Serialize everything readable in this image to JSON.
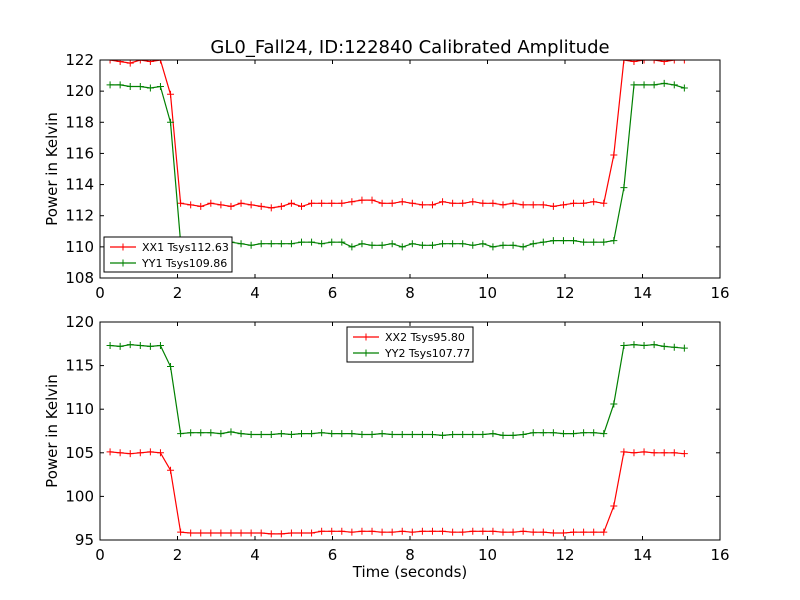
{
  "title": "GL0_Fall24, ID:122840 Calibrated Amplitude",
  "colors": {
    "series_red": "#ff0000",
    "series_green": "#008000",
    "frame": "#000000",
    "background": "#ffffff"
  },
  "chart_data": [
    {
      "type": "line",
      "ylabel": "Power in Kelvin",
      "xlabel": "",
      "xlim": [
        0,
        16
      ],
      "ylim": [
        108,
        122
      ],
      "xticks": [
        0,
        2,
        4,
        6,
        8,
        10,
        12,
        14,
        16
      ],
      "yticks": [
        108,
        110,
        112,
        114,
        116,
        118,
        120,
        122
      ],
      "legend_position": "lower-left",
      "grid": false,
      "series": [
        {
          "name": "XX1 Tsys112.63",
          "color": "#ff0000",
          "x": [
            0.26,
            0.52,
            0.78,
            1.04,
            1.3,
            1.56,
            1.82,
            2.08,
            2.34,
            2.6,
            2.86,
            3.12,
            3.38,
            3.64,
            3.9,
            4.16,
            4.42,
            4.68,
            4.94,
            5.2,
            5.46,
            5.72,
            5.98,
            6.24,
            6.5,
            6.76,
            7.02,
            7.28,
            7.54,
            7.8,
            8.06,
            8.32,
            8.58,
            8.84,
            9.1,
            9.36,
            9.62,
            9.88,
            10.14,
            10.4,
            10.66,
            10.92,
            11.18,
            11.44,
            11.7,
            11.96,
            12.22,
            12.48,
            12.74,
            13.0,
            13.26,
            13.52,
            13.78,
            14.04,
            14.3,
            14.56,
            14.82,
            15.08
          ],
          "y": [
            122.0,
            121.9,
            121.8,
            122.0,
            121.9,
            122.0,
            119.8,
            112.8,
            112.7,
            112.6,
            112.8,
            112.7,
            112.6,
            112.8,
            112.7,
            112.6,
            112.5,
            112.6,
            112.8,
            112.6,
            112.8,
            112.8,
            112.8,
            112.8,
            112.9,
            113.0,
            113.0,
            112.8,
            112.8,
            112.9,
            112.8,
            112.7,
            112.7,
            112.9,
            112.8,
            112.8,
            112.9,
            112.8,
            112.8,
            112.7,
            112.8,
            112.7,
            112.7,
            112.7,
            112.6,
            112.7,
            112.8,
            112.8,
            112.9,
            112.8,
            115.9,
            122.0,
            121.9,
            122.0,
            122.0,
            121.9,
            122.0,
            122.0
          ]
        },
        {
          "name": "YY1 Tsys109.86",
          "color": "#008000",
          "x": [
            0.26,
            0.52,
            0.78,
            1.04,
            1.3,
            1.56,
            1.82,
            2.08,
            2.34,
            2.6,
            2.86,
            3.12,
            3.38,
            3.64,
            3.9,
            4.16,
            4.42,
            4.68,
            4.94,
            5.2,
            5.46,
            5.72,
            5.98,
            6.24,
            6.5,
            6.76,
            7.02,
            7.28,
            7.54,
            7.8,
            8.06,
            8.32,
            8.58,
            8.84,
            9.1,
            9.36,
            9.62,
            9.88,
            10.14,
            10.4,
            10.66,
            10.92,
            11.18,
            11.44,
            11.7,
            11.96,
            12.22,
            12.48,
            12.74,
            13.0,
            13.26,
            13.52,
            13.78,
            14.04,
            14.3,
            14.56,
            14.82,
            15.08
          ],
          "y": [
            120.4,
            120.4,
            120.3,
            120.3,
            120.2,
            120.3,
            118.0,
            110.3,
            110.2,
            110.2,
            110.1,
            110.2,
            110.3,
            110.2,
            110.1,
            110.2,
            110.2,
            110.2,
            110.2,
            110.3,
            110.3,
            110.2,
            110.3,
            110.3,
            110.0,
            110.2,
            110.1,
            110.1,
            110.2,
            110.0,
            110.2,
            110.1,
            110.1,
            110.2,
            110.2,
            110.2,
            110.1,
            110.2,
            110.0,
            110.1,
            110.1,
            110.0,
            110.2,
            110.3,
            110.4,
            110.4,
            110.4,
            110.3,
            110.3,
            110.3,
            110.4,
            113.8,
            120.4,
            120.4,
            120.4,
            120.5,
            120.4,
            120.2
          ]
        }
      ]
    },
    {
      "type": "line",
      "ylabel": "Power in Kelvin",
      "xlabel": "Time (seconds)",
      "xlim": [
        0,
        16
      ],
      "ylim": [
        95,
        120
      ],
      "xticks": [
        0,
        2,
        4,
        6,
        8,
        10,
        12,
        14,
        16
      ],
      "yticks": [
        95,
        100,
        105,
        110,
        115,
        120
      ],
      "legend_position": "upper-center",
      "grid": false,
      "series": [
        {
          "name": "XX2 Tsys95.80",
          "color": "#ff0000",
          "x": [
            0.26,
            0.52,
            0.78,
            1.04,
            1.3,
            1.56,
            1.82,
            2.08,
            2.34,
            2.6,
            2.86,
            3.12,
            3.38,
            3.64,
            3.9,
            4.16,
            4.42,
            4.68,
            4.94,
            5.2,
            5.46,
            5.72,
            5.98,
            6.24,
            6.5,
            6.76,
            7.02,
            7.28,
            7.54,
            7.8,
            8.06,
            8.32,
            8.58,
            8.84,
            9.1,
            9.36,
            9.62,
            9.88,
            10.14,
            10.4,
            10.66,
            10.92,
            11.18,
            11.44,
            11.7,
            11.96,
            12.22,
            12.48,
            12.74,
            13.0,
            13.26,
            13.52,
            13.78,
            14.04,
            14.3,
            14.56,
            14.82,
            15.08
          ],
          "y": [
            105.1,
            105.0,
            104.9,
            105.0,
            105.1,
            105.0,
            103.0,
            95.9,
            95.8,
            95.8,
            95.8,
            95.8,
            95.8,
            95.8,
            95.8,
            95.8,
            95.7,
            95.7,
            95.8,
            95.8,
            95.8,
            96.0,
            96.0,
            96.0,
            95.9,
            96.0,
            96.0,
            95.9,
            95.9,
            96.0,
            95.9,
            96.0,
            96.0,
            96.0,
            95.9,
            95.9,
            96.0,
            96.0,
            96.0,
            95.9,
            95.9,
            96.0,
            95.9,
            95.9,
            95.8,
            95.8,
            95.9,
            95.9,
            95.9,
            95.9,
            98.9,
            105.1,
            105.0,
            105.1,
            105.0,
            105.0,
            105.0,
            104.9
          ]
        },
        {
          "name": "YY2 Tsys107.77",
          "color": "#008000",
          "x": [
            0.26,
            0.52,
            0.78,
            1.04,
            1.3,
            1.56,
            1.82,
            2.08,
            2.34,
            2.6,
            2.86,
            3.12,
            3.38,
            3.64,
            3.9,
            4.16,
            4.42,
            4.68,
            4.94,
            5.2,
            5.46,
            5.72,
            5.98,
            6.24,
            6.5,
            6.76,
            7.02,
            7.28,
            7.54,
            7.8,
            8.06,
            8.32,
            8.58,
            8.84,
            9.1,
            9.36,
            9.62,
            9.88,
            10.14,
            10.4,
            10.66,
            10.92,
            11.18,
            11.44,
            11.7,
            11.96,
            12.22,
            12.48,
            12.74,
            13.0,
            13.26,
            13.52,
            13.78,
            14.04,
            14.3,
            14.56,
            14.82,
            15.08
          ],
          "y": [
            117.3,
            117.2,
            117.4,
            117.3,
            117.2,
            117.3,
            114.9,
            107.2,
            107.3,
            107.3,
            107.3,
            107.2,
            107.4,
            107.2,
            107.1,
            107.1,
            107.1,
            107.2,
            107.1,
            107.2,
            107.2,
            107.3,
            107.2,
            107.2,
            107.2,
            107.1,
            107.1,
            107.2,
            107.1,
            107.1,
            107.1,
            107.1,
            107.1,
            107.0,
            107.1,
            107.1,
            107.1,
            107.1,
            107.2,
            107.0,
            107.0,
            107.1,
            107.3,
            107.3,
            107.3,
            107.2,
            107.2,
            107.3,
            107.3,
            107.2,
            110.6,
            117.3,
            117.4,
            117.3,
            117.4,
            117.2,
            117.1,
            117.0
          ]
        }
      ]
    }
  ]
}
